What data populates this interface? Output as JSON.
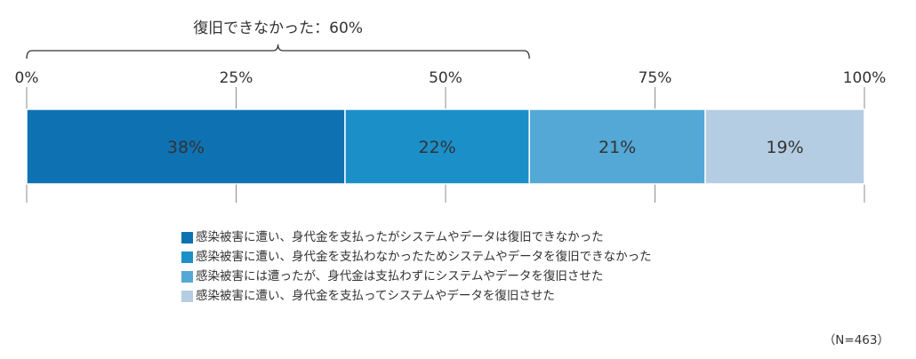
{
  "chart_data": {
    "type": "bar",
    "orientation": "horizontal-stacked",
    "xlim": [
      0,
      100
    ],
    "ticks": [
      "0%",
      "25%",
      "50%",
      "75%",
      "100%"
    ],
    "series": [
      {
        "name": "感染被害に遭い、身代金を支払ったがシステムやデータは復旧できなかった",
        "value": 38,
        "label": "38%",
        "color": "#0e72b2"
      },
      {
        "name": "感染被害に遭い、身代金を支払わなかったためシステムやデータを復旧できなかった",
        "value": 22,
        "label": "22%",
        "color": "#1b8fc8"
      },
      {
        "name": "感染被害には遭ったが、身代金は支払わずにシステムやデータを復旧させた",
        "value": 21,
        "label": "21%",
        "color": "#54a8d6"
      },
      {
        "name": "感染被害に遭い、身代金を支払ってシステムやデータを復旧させた",
        "value": 19,
        "label": "19%",
        "color": "#b4cde2"
      }
    ],
    "annotation": {
      "text": "復旧できなかった：60%",
      "span": [
        0,
        60
      ]
    },
    "note": "（N=463）",
    "grid": true
  }
}
